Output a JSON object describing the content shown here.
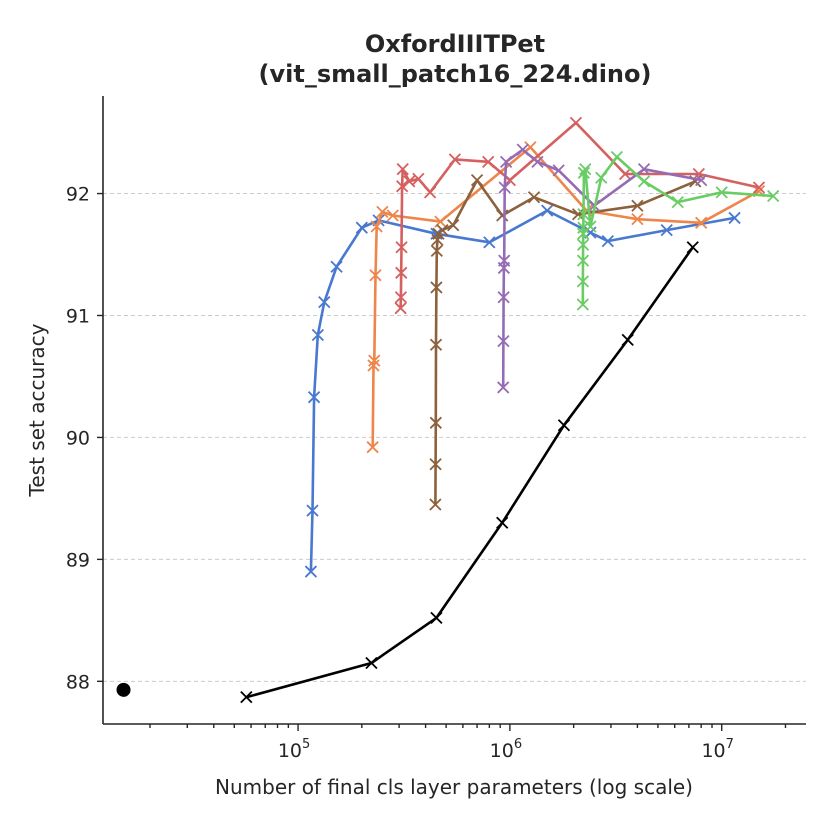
{
  "chart_data": {
    "type": "line",
    "title_line1": "OxfordIIITPet",
    "title_line2": "(vit_small_patch16_224.dino)",
    "xlabel": "Number of final cls layer parameters (log scale)",
    "ylabel": "Test set accuracy",
    "xscale": "log",
    "xlim": [
      12000,
      25000000
    ],
    "ylim": [
      87.65,
      92.8
    ],
    "yticks": [
      88,
      89,
      90,
      91,
      92
    ],
    "xticks": [
      {
        "value": 100000,
        "base": "10",
        "exp": "5"
      },
      {
        "value": 1000000,
        "base": "10",
        "exp": "6"
      },
      {
        "value": 10000000,
        "base": "10",
        "exp": "7"
      }
    ],
    "grid": "horizontal dashed",
    "series": [
      {
        "name": "blue",
        "color": "#4878d0",
        "x": [
          115000,
          117000,
          119000,
          124000,
          133000,
          152000,
          200000,
          240000,
          450000,
          800000,
          1500000,
          2400000,
          2900000,
          5500000,
          11500000
        ],
        "y": [
          88.9,
          89.4,
          90.33,
          90.84,
          91.11,
          91.4,
          91.72,
          91.78,
          91.67,
          91.6,
          91.86,
          91.68,
          91.61,
          91.7,
          91.8
        ]
      },
      {
        "name": "orange",
        "color": "#ee854a",
        "x": [
          225000,
          227000,
          229000,
          232000,
          235000,
          250000,
          280000,
          470000,
          1250000,
          2300000,
          4000000,
          8000000,
          15000000
        ],
        "y": [
          89.92,
          90.59,
          90.63,
          91.33,
          91.73,
          91.85,
          91.82,
          91.77,
          92.38,
          91.86,
          91.79,
          91.76,
          92.02
        ]
      },
      {
        "name": "red",
        "color": "#d65f5f",
        "x": [
          305000,
          306000,
          307000,
          308000,
          310000,
          312000,
          335000,
          370000,
          420000,
          550000,
          790000,
          1000000,
          2050000,
          3500000,
          7800000,
          15000000
        ],
        "y": [
          91.06,
          91.15,
          91.35,
          91.56,
          92.06,
          92.2,
          92.1,
          92.12,
          92.01,
          92.28,
          92.26,
          92.11,
          92.58,
          92.16,
          92.16,
          92.05
        ]
      },
      {
        "name": "brown",
        "color": "#8c613c",
        "x": [
          445000,
          446000,
          447000,
          448000,
          450000,
          452000,
          455000,
          460000,
          480000,
          540000,
          700000,
          920000,
          1300000,
          2100000,
          4000000,
          7500000
        ],
        "y": [
          89.45,
          89.78,
          90.12,
          90.76,
          91.23,
          91.53,
          91.62,
          91.67,
          91.7,
          91.74,
          92.11,
          91.82,
          91.97,
          91.83,
          91.9,
          92.1
        ]
      },
      {
        "name": "purple",
        "color": "#956cb4",
        "x": [
          930000,
          932000,
          934000,
          937000,
          940000,
          945000,
          960000,
          1150000,
          1350000,
          1700000,
          2500000,
          4300000,
          8000000
        ],
        "y": [
          90.41,
          90.79,
          91.15,
          91.39,
          91.45,
          92.05,
          92.26,
          92.36,
          92.26,
          92.19,
          91.9,
          92.2,
          92.11
        ]
      },
      {
        "name": "green",
        "color": "#6acc64",
        "x": [
          2210000,
          2212000,
          2214000,
          2216000,
          2218000,
          2222000,
          2225000,
          2235000,
          2270000,
          2400000,
          2700000,
          3200000,
          4300000,
          6200000,
          10000000,
          17500000
        ],
        "y": [
          91.09,
          91.28,
          91.45,
          91.58,
          91.67,
          91.72,
          91.83,
          92.17,
          92.2,
          91.73,
          92.13,
          92.3,
          92.1,
          91.93,
          92.01,
          91.98
        ]
      },
      {
        "name": "black",
        "color": "#000000",
        "x": [
          57000,
          222000,
          450000,
          920000,
          1800000,
          3600000,
          7300000
        ],
        "y": [
          87.87,
          88.15,
          88.52,
          89.3,
          90.1,
          90.8,
          91.56
        ]
      }
    ],
    "point": {
      "x": 15000,
      "y": 87.93,
      "color": "#000000"
    }
  }
}
